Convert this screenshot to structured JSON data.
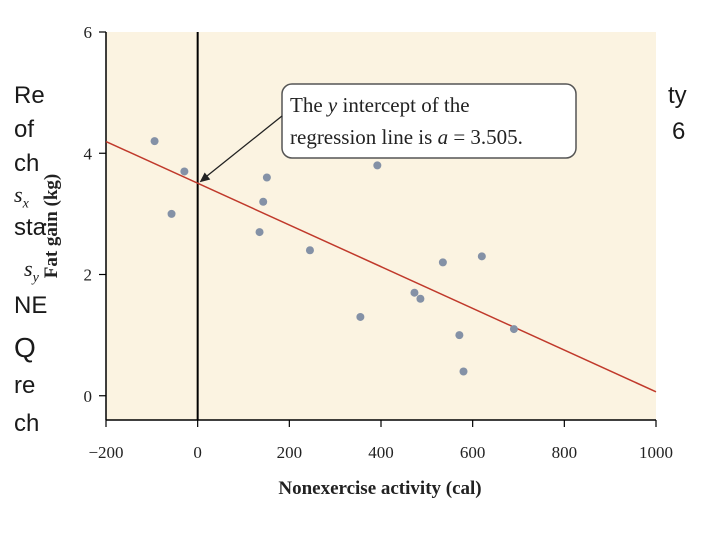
{
  "slide": {
    "fragments": [
      "Re",
      "of",
      "ch",
      "s",
      "sta",
      "s",
      "NE",
      "Q",
      "re",
      "ch",
      "ty",
      "6"
    ],
    "subscripts": [
      "x",
      "y"
    ]
  },
  "chart_data": {
    "type": "scatter",
    "xlabel": "Nonexercise activity (cal)",
    "ylabel": "Fat gain (kg)",
    "xlim": [
      -200,
      1000
    ],
    "ylim": [
      -0.4,
      6
    ],
    "xticks": [
      -200,
      0,
      200,
      400,
      600,
      800,
      1000
    ],
    "yticks": [
      0,
      2,
      4,
      6
    ],
    "x_tick_labels": [
      "−200",
      "0",
      "200",
      "400",
      "600",
      "800",
      "1000"
    ],
    "y_tick_labels": [
      "0",
      "2",
      "4",
      "6"
    ],
    "grid": false,
    "colors": {
      "background": "#fbf3e1",
      "points": "#8491a6",
      "line": "#c0392b",
      "axis": "#000000"
    },
    "points": [
      {
        "x": -94,
        "y": 4.2
      },
      {
        "x": -57,
        "y": 3.0
      },
      {
        "x": -29,
        "y": 3.7
      },
      {
        "x": 135,
        "y": 2.7
      },
      {
        "x": 143,
        "y": 3.2
      },
      {
        "x": 151,
        "y": 3.6
      },
      {
        "x": 245,
        "y": 2.4
      },
      {
        "x": 355,
        "y": 1.3
      },
      {
        "x": 392,
        "y": 3.8
      },
      {
        "x": 473,
        "y": 1.7
      },
      {
        "x": 486,
        "y": 1.6
      },
      {
        "x": 535,
        "y": 2.2
      },
      {
        "x": 571,
        "y": 1.0
      },
      {
        "x": 580,
        "y": 0.4
      },
      {
        "x": 620,
        "y": 2.3
      },
      {
        "x": 690,
        "y": 1.1
      }
    ],
    "regression": {
      "intercept": 3.505,
      "slope": -0.00344
    },
    "annotation": {
      "line1": "The y intercept of the",
      "line2": "regression line is a = 3.505.",
      "target": {
        "x": 0,
        "y": 3.505
      }
    }
  }
}
